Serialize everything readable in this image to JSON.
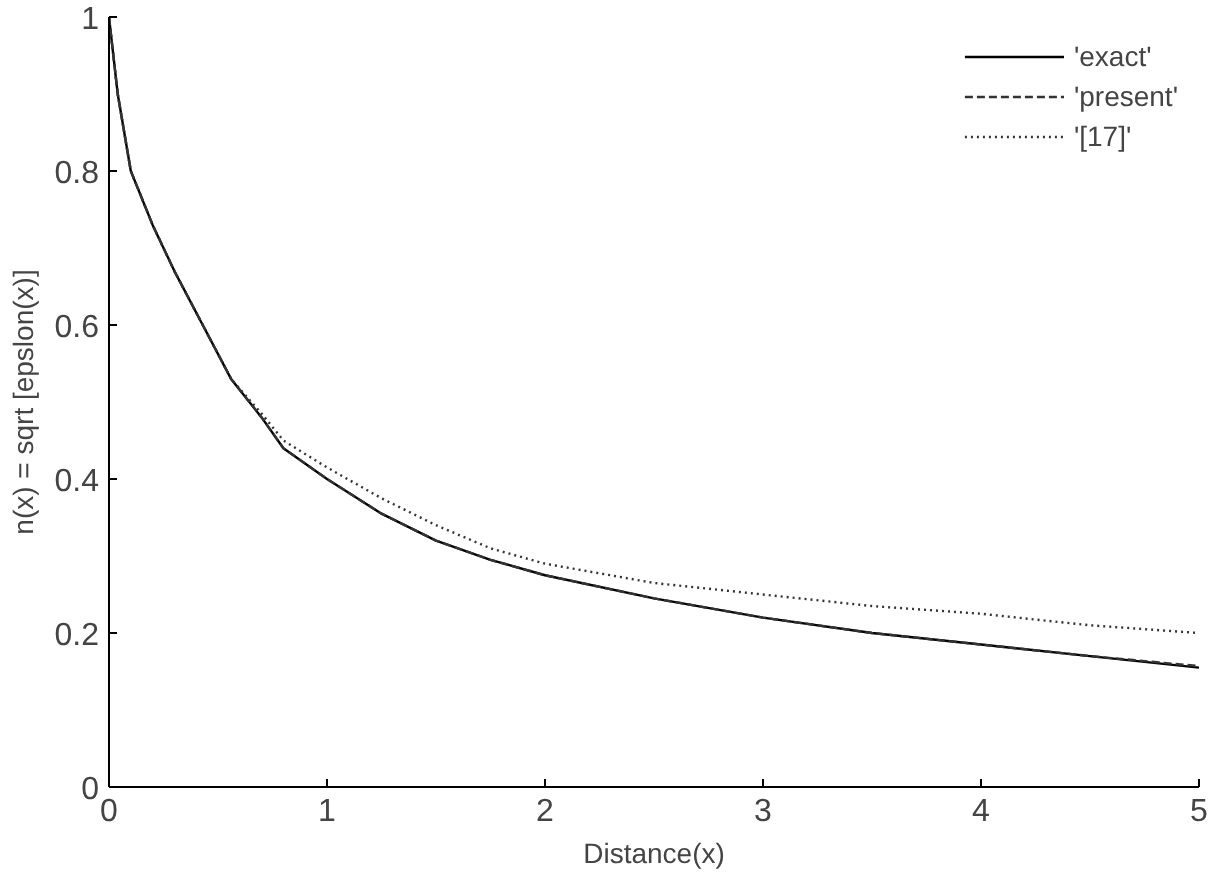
{
  "chart_data": {
    "type": "line",
    "xlabel": "Distance(x)",
    "ylabel": "n(x) = sqrt [epslon(x)]",
    "xlim": [
      0,
      5
    ],
    "ylim": [
      0,
      1
    ],
    "xticks": [
      0,
      1,
      2,
      3,
      4,
      5
    ],
    "yticks": [
      0,
      0.2,
      0.4,
      0.6,
      0.8,
      1
    ],
    "grid": false,
    "legend": "top right",
    "x": [
      0,
      0.04,
      0.1,
      0.2,
      0.3,
      0.43,
      0.56,
      0.7,
      0.8,
      1,
      1.25,
      1.5,
      1.75,
      2,
      2.5,
      3,
      3.5,
      4,
      4.5,
      5
    ],
    "series": [
      {
        "name": "'exact'",
        "color": "#000000",
        "line_style": "solid",
        "values": [
          1,
          0.9,
          0.8,
          0.73,
          0.67,
          0.6,
          0.53,
          0.48,
          0.44,
          0.4,
          0.355,
          0.32,
          0.295,
          0.275,
          0.245,
          0.22,
          0.2,
          0.185,
          0.17,
          0.155
        ]
      },
      {
        "name": "'present'",
        "color": "#333333",
        "line_style": "dashed",
        "values": [
          1,
          0.9,
          0.8,
          0.73,
          0.67,
          0.6,
          0.53,
          0.48,
          0.44,
          0.4,
          0.355,
          0.32,
          0.295,
          0.275,
          0.245,
          0.22,
          0.2,
          0.185,
          0.17,
          0.157
        ]
      },
      {
        "name": "'[17]'",
        "color": "#333333",
        "line_style": "dotted",
        "values": [
          1,
          0.9,
          0.8,
          0.73,
          0.67,
          0.6,
          0.53,
          0.485,
          0.45,
          0.415,
          0.375,
          0.34,
          0.31,
          0.29,
          0.265,
          0.25,
          0.235,
          0.225,
          0.21,
          0.2
        ]
      }
    ]
  }
}
